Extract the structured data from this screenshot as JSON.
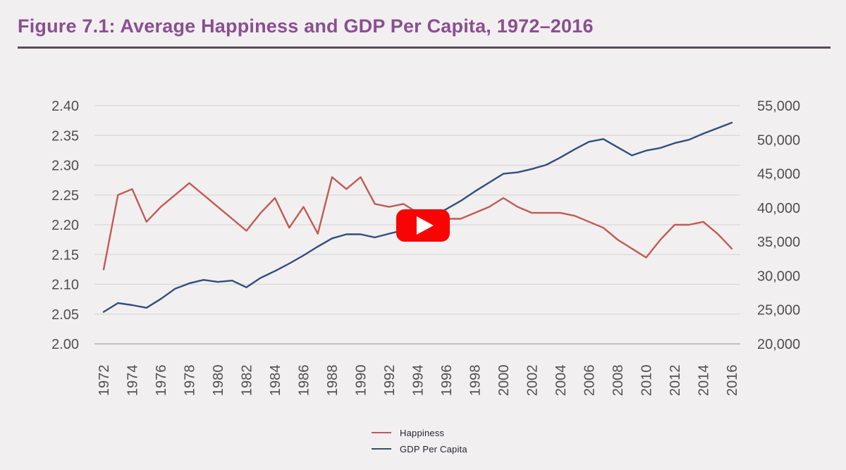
{
  "header": {
    "title": "Figure 7.1: Average Happiness and GDP Per Capita, 1972–2016"
  },
  "play_button": {
    "color": "#f70505",
    "icon": "play-icon"
  },
  "colors": {
    "background": "#f2eff0",
    "title_text": "#8a4f90",
    "title_rule": "#564c59",
    "gridline": "#d9d7d7",
    "axis_line": "#b3b1b1",
    "axis_text": "#4f4f4f"
  },
  "chart_data": {
    "type": "line",
    "title": "Figure 7.1: Average Happiness and GDP Per Capita, 1972–2016",
    "grid": true,
    "legend_position": "bottom",
    "x": [
      1972,
      1973,
      1974,
      1975,
      1976,
      1977,
      1978,
      1979,
      1980,
      1981,
      1982,
      1983,
      1984,
      1985,
      1986,
      1987,
      1988,
      1989,
      1990,
      1991,
      1992,
      1993,
      1994,
      1995,
      1996,
      1997,
      1998,
      1999,
      2000,
      2001,
      2002,
      2003,
      2004,
      2005,
      2006,
      2007,
      2008,
      2009,
      2010,
      2011,
      2012,
      2013,
      2014,
      2015,
      2016
    ],
    "x_tick_labels": [
      "1972",
      "1974",
      "1976",
      "1978",
      "1980",
      "1982",
      "1984",
      "1986",
      "1988",
      "1990",
      "1992",
      "1994",
      "1996",
      "1998",
      "2000",
      "2002",
      "2004",
      "2006",
      "2008",
      "2010",
      "2012",
      "2014",
      "2016"
    ],
    "left_axis": {
      "range": [
        2.0,
        2.4
      ],
      "ticks": [
        "2.40",
        "2.35",
        "2.30",
        "2.25",
        "2.20",
        "2.15",
        "2.10",
        "2.05",
        "2.00"
      ]
    },
    "right_axis": {
      "range": [
        20000,
        55000
      ],
      "ticks": [
        "55,000",
        "50,000",
        "45,000",
        "40,000",
        "35,000",
        "30,000",
        "25,000",
        "20,000"
      ]
    },
    "series": [
      {
        "name": "Happiness",
        "axis": "left",
        "color": "#c05b55",
        "values": [
          2.125,
          2.25,
          2.26,
          2.205,
          2.23,
          2.25,
          2.27,
          2.25,
          2.23,
          2.21,
          2.19,
          2.22,
          2.245,
          2.195,
          2.23,
          2.185,
          2.28,
          2.26,
          2.28,
          2.235,
          2.23,
          2.235,
          2.22,
          2.215,
          2.21,
          2.21,
          2.22,
          2.23,
          2.245,
          2.23,
          2.22,
          2.22,
          2.22,
          2.215,
          2.205,
          2.195,
          2.175,
          2.16,
          2.145,
          2.175,
          2.2,
          2.2,
          2.205,
          2.185,
          2.16
        ]
      },
      {
        "name": "GDP Per Capita",
        "axis": "right",
        "color": "#2f4f7d",
        "values": [
          24700,
          26000,
          25700,
          25300,
          26600,
          28100,
          28900,
          29400,
          29100,
          29300,
          28300,
          29700,
          30700,
          31800,
          33000,
          34300,
          35500,
          36100,
          36100,
          35650,
          36200,
          36700,
          37500,
          38700,
          39800,
          41000,
          42400,
          43700,
          45000,
          45200,
          45700,
          46300,
          47400,
          48600,
          49700,
          50100,
          48900,
          47700,
          48400,
          48800,
          49500,
          50000,
          50900,
          51700,
          52500
        ]
      }
    ]
  }
}
